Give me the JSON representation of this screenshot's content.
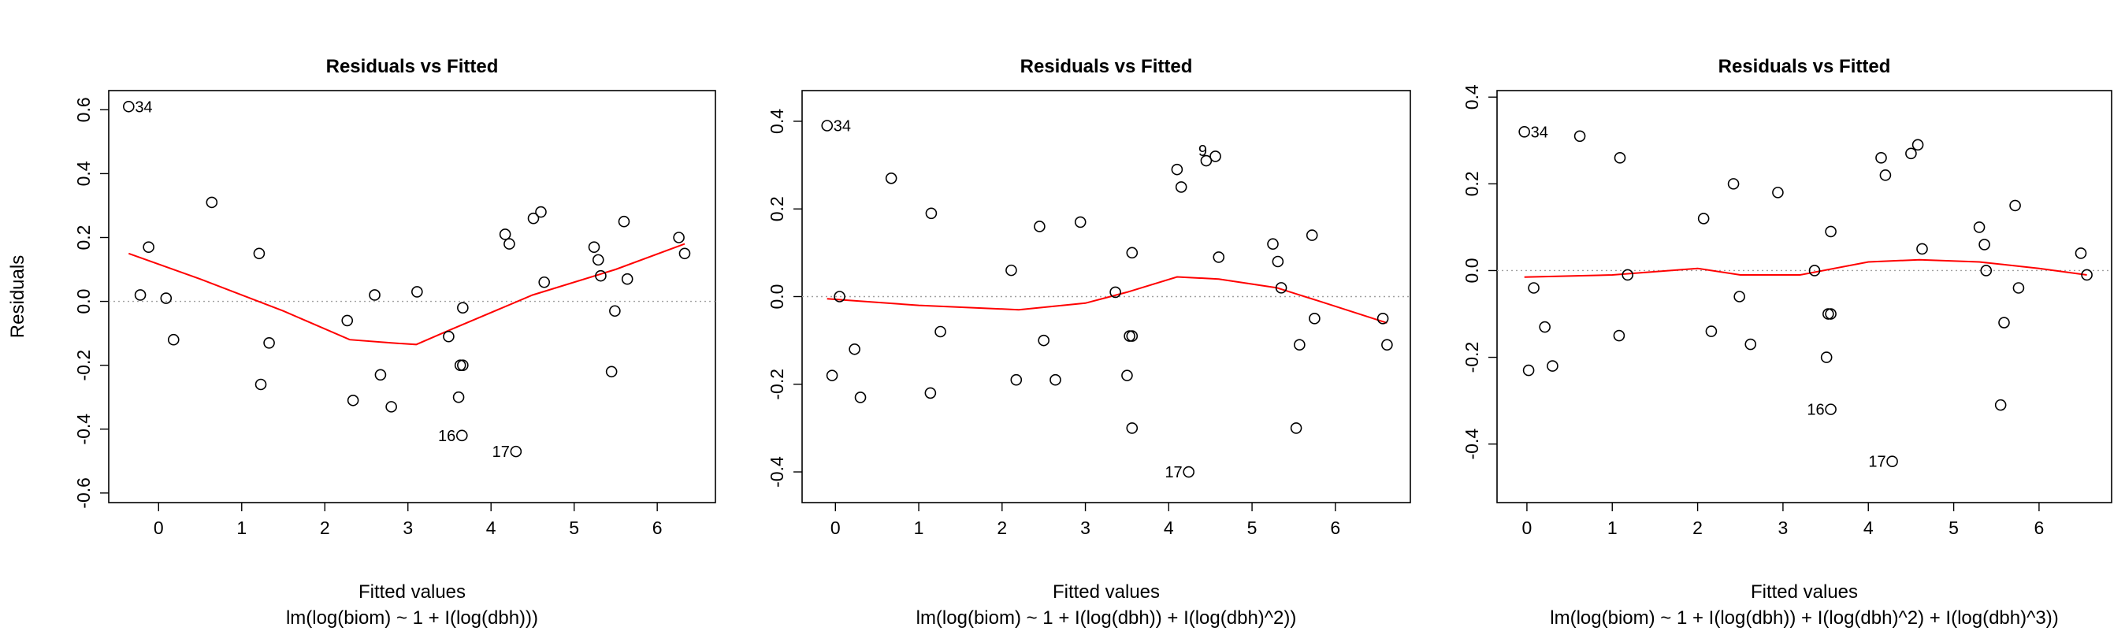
{
  "chart_data": [
    {
      "type": "scatter",
      "title": "Residuals vs Fitted",
      "xlabel": "Fitted values",
      "ylabel": "Residuals",
      "subtitle": "lm(log(biom) ~ 1 + I(log(dbh)))",
      "xlim": [
        -0.6,
        6.7
      ],
      "ylim": [
        -0.63,
        0.66
      ],
      "xticks": [
        "0",
        "1",
        "2",
        "3",
        "4",
        "5",
        "6"
      ],
      "xtick_values": [
        0,
        1,
        2,
        3,
        4,
        5,
        6
      ],
      "yticks": [
        "-0.6",
        "-0.4",
        "-0.2",
        "0.0",
        "0.2",
        "0.4",
        "0.6"
      ],
      "ytick_values": [
        -0.6,
        -0.4,
        -0.2,
        0.0,
        0.2,
        0.4,
        0.6
      ],
      "grid": false,
      "zero_line": true,
      "points": [
        {
          "x": -0.36,
          "y": 0.61,
          "label": "34"
        },
        {
          "x": -0.22,
          "y": 0.02
        },
        {
          "x": -0.12,
          "y": 0.17
        },
        {
          "x": 0.09,
          "y": 0.01
        },
        {
          "x": 0.18,
          "y": -0.12
        },
        {
          "x": 0.64,
          "y": 0.31
        },
        {
          "x": 1.21,
          "y": 0.15
        },
        {
          "x": 1.23,
          "y": -0.26
        },
        {
          "x": 1.33,
          "y": -0.13
        },
        {
          "x": 2.27,
          "y": -0.06
        },
        {
          "x": 2.34,
          "y": -0.31
        },
        {
          "x": 2.6,
          "y": 0.02
        },
        {
          "x": 2.67,
          "y": -0.23
        },
        {
          "x": 2.8,
          "y": -0.33
        },
        {
          "x": 3.11,
          "y": 0.03
        },
        {
          "x": 3.49,
          "y": -0.11
        },
        {
          "x": 3.61,
          "y": -0.3
        },
        {
          "x": 3.63,
          "y": -0.2
        },
        {
          "x": 3.66,
          "y": -0.2
        },
        {
          "x": 3.66,
          "y": -0.02
        },
        {
          "x": 3.65,
          "y": -0.42,
          "label": "16"
        },
        {
          "x": 4.17,
          "y": 0.21
        },
        {
          "x": 4.22,
          "y": 0.18
        },
        {
          "x": 4.3,
          "y": -0.47,
          "label": "17"
        },
        {
          "x": 4.51,
          "y": 0.26
        },
        {
          "x": 4.6,
          "y": 0.28
        },
        {
          "x": 4.64,
          "y": 0.06
        },
        {
          "x": 5.24,
          "y": 0.17
        },
        {
          "x": 5.29,
          "y": 0.13
        },
        {
          "x": 5.32,
          "y": 0.08
        },
        {
          "x": 5.45,
          "y": -0.22
        },
        {
          "x": 5.49,
          "y": -0.03
        },
        {
          "x": 5.6,
          "y": 0.25
        },
        {
          "x": 5.64,
          "y": 0.07
        },
        {
          "x": 6.26,
          "y": 0.2
        },
        {
          "x": 6.33,
          "y": 0.15
        }
      ],
      "smooth": [
        [
          -0.36,
          0.15
        ],
        [
          0.5,
          0.07
        ],
        [
          1.5,
          -0.03
        ],
        [
          2.3,
          -0.12
        ],
        [
          2.8,
          -0.13
        ],
        [
          3.1,
          -0.135
        ],
        [
          3.5,
          -0.09
        ],
        [
          4.5,
          0.02
        ],
        [
          5.5,
          0.1
        ],
        [
          6.33,
          0.18
        ]
      ],
      "colors": {
        "points": "#000000",
        "smooth": "#ff0000",
        "zero_line": "#a0a0a0"
      }
    },
    {
      "type": "scatter",
      "title": "Residuals vs Fitted",
      "xlabel": "Fitted values",
      "ylabel": "",
      "subtitle": "lm(log(biom) ~ 1 + I(log(dbh)) + I(log(dbh)^2))",
      "xlim": [
        -0.4,
        6.9
      ],
      "ylim": [
        -0.47,
        0.47
      ],
      "xticks": [
        "0",
        "1",
        "2",
        "3",
        "4",
        "5",
        "6"
      ],
      "xtick_values": [
        0,
        1,
        2,
        3,
        4,
        5,
        6
      ],
      "yticks": [
        "-0.4",
        "-0.2",
        "0.0",
        "0.2",
        "0.4"
      ],
      "ytick_values": [
        -0.4,
        -0.2,
        0.0,
        0.2,
        0.4
      ],
      "grid": false,
      "zero_line": true,
      "points": [
        {
          "x": -0.1,
          "y": 0.39,
          "label": "34"
        },
        {
          "x": -0.04,
          "y": -0.18
        },
        {
          "x": 0.05,
          "y": 0.0
        },
        {
          "x": 0.23,
          "y": -0.12
        },
        {
          "x": 0.3,
          "y": -0.23
        },
        {
          "x": 0.67,
          "y": 0.27
        },
        {
          "x": 1.14,
          "y": -0.22
        },
        {
          "x": 1.15,
          "y": 0.19
        },
        {
          "x": 1.26,
          "y": -0.08
        },
        {
          "x": 2.11,
          "y": 0.06
        },
        {
          "x": 2.17,
          "y": -0.19
        },
        {
          "x": 2.45,
          "y": 0.16
        },
        {
          "x": 2.5,
          "y": -0.1
        },
        {
          "x": 2.64,
          "y": -0.19
        },
        {
          "x": 2.94,
          "y": 0.17
        },
        {
          "x": 3.36,
          "y": 0.01
        },
        {
          "x": 3.5,
          "y": -0.18
        },
        {
          "x": 3.53,
          "y": -0.09
        },
        {
          "x": 3.56,
          "y": -0.09
        },
        {
          "x": 3.56,
          "y": 0.1
        },
        {
          "x": 3.56,
          "y": -0.3
        },
        {
          "x": 4.1,
          "y": 0.29
        },
        {
          "x": 4.15,
          "y": 0.25
        },
        {
          "x": 4.24,
          "y": -0.4,
          "label": "17"
        },
        {
          "x": 4.45,
          "y": 0.31,
          "label": "9"
        },
        {
          "x": 4.56,
          "y": 0.32
        },
        {
          "x": 4.6,
          "y": 0.09
        },
        {
          "x": 5.25,
          "y": 0.12
        },
        {
          "x": 5.31,
          "y": 0.08
        },
        {
          "x": 5.35,
          "y": 0.02
        },
        {
          "x": 5.53,
          "y": -0.3
        },
        {
          "x": 5.57,
          "y": -0.11
        },
        {
          "x": 5.72,
          "y": 0.14
        },
        {
          "x": 5.75,
          "y": -0.05
        },
        {
          "x": 6.57,
          "y": -0.05
        },
        {
          "x": 6.62,
          "y": -0.11
        }
      ],
      "smooth": [
        [
          -0.1,
          -0.005
        ],
        [
          1.0,
          -0.02
        ],
        [
          2.2,
          -0.03
        ],
        [
          3.0,
          -0.015
        ],
        [
          3.5,
          0.01
        ],
        [
          4.1,
          0.045
        ],
        [
          4.6,
          0.04
        ],
        [
          5.3,
          0.02
        ],
        [
          5.8,
          -0.01
        ],
        [
          6.62,
          -0.06
        ]
      ],
      "colors": {
        "points": "#000000",
        "smooth": "#ff0000",
        "zero_line": "#a0a0a0"
      }
    },
    {
      "type": "scatter",
      "title": "Residuals vs Fitted",
      "xlabel": "Fitted values",
      "ylabel": "",
      "subtitle": "lm(log(biom) ~ 1 + I(log(dbh)) + I(log(dbh)^2) + I(log(dbh)^3))",
      "xlim": [
        -0.35,
        6.85
      ],
      "ylim": [
        -0.535,
        0.415
      ],
      "xticks": [
        "0",
        "1",
        "2",
        "3",
        "4",
        "5",
        "6"
      ],
      "xtick_values": [
        0,
        1,
        2,
        3,
        4,
        5,
        6
      ],
      "yticks": [
        "-0.4",
        "-0.2",
        "0.0",
        "0.2",
        "0.4"
      ],
      "ytick_values": [
        -0.4,
        -0.2,
        0.0,
        0.2,
        0.4
      ],
      "grid": false,
      "zero_line": true,
      "points": [
        {
          "x": -0.03,
          "y": 0.32,
          "label": "34"
        },
        {
          "x": 0.02,
          "y": -0.23
        },
        {
          "x": 0.08,
          "y": -0.04
        },
        {
          "x": 0.21,
          "y": -0.13
        },
        {
          "x": 0.3,
          "y": -0.22
        },
        {
          "x": 0.62,
          "y": 0.31
        },
        {
          "x": 1.08,
          "y": -0.15
        },
        {
          "x": 1.09,
          "y": 0.26
        },
        {
          "x": 1.18,
          "y": -0.01
        },
        {
          "x": 2.07,
          "y": 0.12
        },
        {
          "x": 2.16,
          "y": -0.14
        },
        {
          "x": 2.42,
          "y": 0.2
        },
        {
          "x": 2.49,
          "y": -0.06
        },
        {
          "x": 2.62,
          "y": -0.17
        },
        {
          "x": 2.94,
          "y": 0.18
        },
        {
          "x": 3.37,
          "y": 0.0
        },
        {
          "x": 3.51,
          "y": -0.2
        },
        {
          "x": 3.53,
          "y": -0.1
        },
        {
          "x": 3.56,
          "y": -0.1
        },
        {
          "x": 3.56,
          "y": 0.09
        },
        {
          "x": 3.56,
          "y": -0.32,
          "label": "16"
        },
        {
          "x": 4.15,
          "y": 0.26
        },
        {
          "x": 4.2,
          "y": 0.22
        },
        {
          "x": 4.28,
          "y": -0.44,
          "label": "17"
        },
        {
          "x": 4.5,
          "y": 0.27
        },
        {
          "x": 4.58,
          "y": 0.29
        },
        {
          "x": 4.63,
          "y": 0.05
        },
        {
          "x": 5.3,
          "y": 0.1
        },
        {
          "x": 5.36,
          "y": 0.06
        },
        {
          "x": 5.38,
          "y": 0.0
        },
        {
          "x": 5.55,
          "y": -0.31
        },
        {
          "x": 5.59,
          "y": -0.12
        },
        {
          "x": 5.72,
          "y": 0.15
        },
        {
          "x": 5.76,
          "y": -0.04
        },
        {
          "x": 6.49,
          "y": 0.04
        },
        {
          "x": 6.56,
          "y": -0.01
        }
      ],
      "smooth": [
        [
          -0.03,
          -0.015
        ],
        [
          1.0,
          -0.01
        ],
        [
          2.0,
          0.005
        ],
        [
          2.5,
          -0.01
        ],
        [
          3.2,
          -0.01
        ],
        [
          4.0,
          0.02
        ],
        [
          4.6,
          0.025
        ],
        [
          5.3,
          0.02
        ],
        [
          6.0,
          0.005
        ],
        [
          6.56,
          -0.01
        ]
      ],
      "colors": {
        "points": "#000000",
        "smooth": "#ff0000",
        "zero_line": "#a0a0a0"
      }
    }
  ]
}
